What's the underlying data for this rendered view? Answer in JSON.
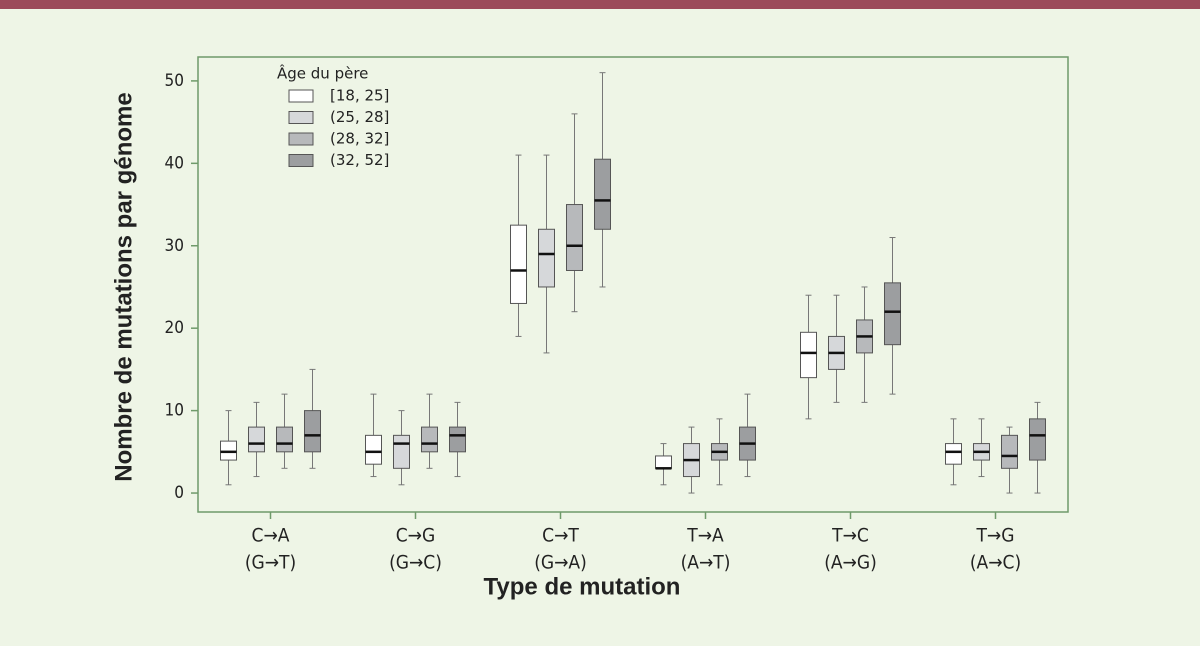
{
  "chart_data": {
    "type": "box",
    "x_label": "Type de mutation",
    "y_label": "Nombre de mutations par génome",
    "legend_title": "Âge du père",
    "legend_position": "upper left",
    "categories": [
      [
        "C→A",
        "(G→T)"
      ],
      [
        "C→G",
        "(G→C)"
      ],
      [
        "C→T",
        "(G→A)"
      ],
      [
        "T→A",
        "(A→T)"
      ],
      [
        "T→C",
        "(A→G)"
      ],
      [
        "T→G",
        "(A→C)"
      ]
    ],
    "ylim": [
      -2.3,
      52.9
    ],
    "yticks": [
      0,
      10,
      20,
      30,
      40,
      50
    ],
    "series": [
      {
        "name": "[18, 25]",
        "color": "#ffffff",
        "values": [
          {
            "min": 1,
            "q1": 4,
            "median": 5,
            "q3": 6.3,
            "max": 10
          },
          {
            "min": 2,
            "q1": 3.5,
            "median": 5,
            "q3": 7,
            "max": 12
          },
          {
            "min": 19,
            "q1": 23,
            "median": 27,
            "q3": 32.5,
            "max": 41
          },
          {
            "min": 1,
            "q1": 3,
            "median": 3,
            "q3": 4.5,
            "max": 6
          },
          {
            "min": 9,
            "q1": 14,
            "median": 17,
            "q3": 19.5,
            "max": 24
          },
          {
            "min": 1,
            "q1": 3.5,
            "median": 5,
            "q3": 6,
            "max": 9
          }
        ]
      },
      {
        "name": "(25, 28]",
        "color": "#d6d8da",
        "values": [
          {
            "min": 2,
            "q1": 5,
            "median": 6,
            "q3": 8,
            "max": 11
          },
          {
            "min": 1,
            "q1": 3,
            "median": 6,
            "q3": 7,
            "max": 10
          },
          {
            "min": 17,
            "q1": 25,
            "median": 29,
            "q3": 32,
            "max": 41
          },
          {
            "min": 0,
            "q1": 2,
            "median": 4,
            "q3": 6,
            "max": 8
          },
          {
            "min": 11,
            "q1": 15,
            "median": 17,
            "q3": 19,
            "max": 24
          },
          {
            "min": 2,
            "q1": 4,
            "median": 5,
            "q3": 6,
            "max": 9
          }
        ]
      },
      {
        "name": "(28, 32]",
        "color": "#b7b9bb",
        "values": [
          {
            "min": 3,
            "q1": 5,
            "median": 6,
            "q3": 8,
            "max": 12
          },
          {
            "min": 3,
            "q1": 5,
            "median": 6,
            "q3": 8,
            "max": 12
          },
          {
            "min": 22,
            "q1": 27,
            "median": 30,
            "q3": 35,
            "max": 46
          },
          {
            "min": 1,
            "q1": 4,
            "median": 5,
            "q3": 6,
            "max": 9
          },
          {
            "min": 11,
            "q1": 17,
            "median": 19,
            "q3": 21,
            "max": 25
          },
          {
            "min": 0,
            "q1": 3,
            "median": 4.5,
            "q3": 7,
            "max": 8
          }
        ]
      },
      {
        "name": "(32, 52]",
        "color": "#9c9ea0",
        "values": [
          {
            "min": 3,
            "q1": 5,
            "median": 7,
            "q3": 10,
            "max": 15
          },
          {
            "min": 2,
            "q1": 5,
            "median": 7,
            "q3": 8,
            "max": 11
          },
          {
            "min": 25,
            "q1": 32,
            "median": 35.5,
            "q3": 40.5,
            "max": 51
          },
          {
            "min": 2,
            "q1": 4,
            "median": 6,
            "q3": 8,
            "max": 12
          },
          {
            "min": 12,
            "q1": 18,
            "median": 22,
            "q3": 25.5,
            "max": 31
          },
          {
            "min": 0,
            "q1": 4,
            "median": 7,
            "q3": 9,
            "max": 11
          }
        ]
      }
    ]
  }
}
